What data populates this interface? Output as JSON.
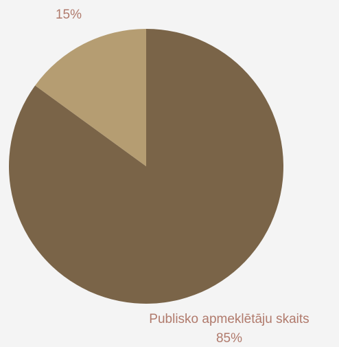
{
  "chart_data": {
    "type": "pie",
    "categories": [
      "Publisko apmeklētāju skaits",
      null
    ],
    "values": [
      85,
      15
    ],
    "value_labels": [
      "85%",
      "15%"
    ],
    "colors": [
      "#7a6448",
      "#b59d72"
    ]
  }
}
